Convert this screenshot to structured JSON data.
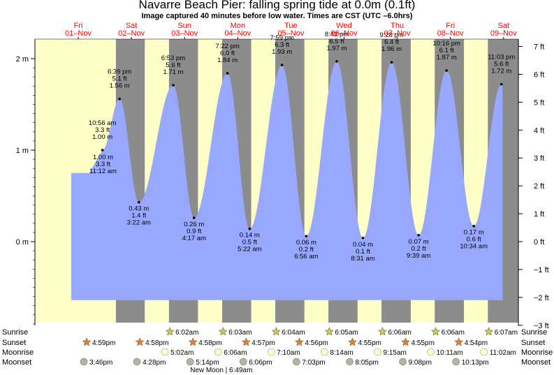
{
  "title": "Navarre Beach Pier: falling  spring tide at 0.0m (0.1ft)",
  "subtitle": "Image captured 40 minutes before low water. Times are CST (UTC –6.0hrs)",
  "chart_data": {
    "type": "area",
    "title": "Navarre Beach Pier: falling  spring tide at 0.0m (0.1ft)",
    "ylim_m": [
      -0.914,
      2.134
    ],
    "left_ticks": [
      {
        "value": 2,
        "label": "2 m"
      },
      {
        "value": 1,
        "label": "1 m"
      },
      {
        "value": 0,
        "label": "0 m"
      }
    ],
    "right_ticks": [
      {
        "value": 7,
        "label": "7 ft"
      },
      {
        "value": 6,
        "label": "6 ft"
      },
      {
        "value": 5,
        "label": "5 ft"
      },
      {
        "value": 4,
        "label": "4 ft"
      },
      {
        "value": 3,
        "label": "3 ft"
      },
      {
        "value": 2,
        "label": "2 ft"
      },
      {
        "value": 1,
        "label": "1 ft"
      },
      {
        "value": 0,
        "label": "0 ft"
      },
      {
        "value": -1,
        "label": "−1 ft"
      },
      {
        "value": -2,
        "label": "−2 ft"
      },
      {
        "value": -3,
        "label": "−3 ft"
      }
    ],
    "days": [
      {
        "dow": "Fri",
        "date": "01–Nov"
      },
      {
        "dow": "Sat",
        "date": "02–Nov"
      },
      {
        "dow": "Sun",
        "date": "03–Nov"
      },
      {
        "dow": "Mon",
        "date": "04–Nov"
      },
      {
        "dow": "Tue",
        "date": "05–Nov"
      },
      {
        "dow": "Wed",
        "date": "06–Nov"
      },
      {
        "dow": "Thu",
        "date": "07–Nov"
      },
      {
        "dow": "Fri",
        "date": "08–Nov"
      },
      {
        "dow": "Sat",
        "date": "09–Nov"
      }
    ],
    "high_tides": [
      {
        "day": 0,
        "hour": 10.93,
        "m": 1.0,
        "label": [
          "10:56 am",
          "3.3 ft",
          "1.00 m"
        ]
      },
      {
        "day": 0,
        "hour": 18.65,
        "m": 1.56,
        "label": [
          "6:39 pm",
          "5.1 ft",
          "1.56 m"
        ]
      },
      {
        "day": 1,
        "hour": 18.88,
        "m": 1.71,
        "label": [
          "6:53 pm",
          "5.6 ft",
          "1.71 m"
        ]
      },
      {
        "day": 2,
        "hour": 19.37,
        "m": 1.84,
        "label": [
          "7:22 pm",
          "6.0 ft",
          "1.84 m"
        ]
      },
      {
        "day": 3,
        "hour": 19.98,
        "m": 1.93,
        "label": [
          "7:59 pm",
          "6.3 ft",
          "1.93 m"
        ]
      },
      {
        "day": 4,
        "hour": 20.7,
        "m": 1.97,
        "label": [
          "8:42 pm",
          "6.5 ft",
          "1.97 m"
        ]
      },
      {
        "day": 5,
        "hour": 21.47,
        "m": 1.96,
        "label": [
          "9:28 pm",
          "6.4 ft",
          "1.96 m"
        ]
      },
      {
        "day": 6,
        "hour": 22.27,
        "m": 1.87,
        "label": [
          "10:16 pm",
          "6.1 ft",
          "1.87 m"
        ]
      },
      {
        "day": 7,
        "hour": 23.05,
        "m": 1.72,
        "label": [
          "11:03 pm",
          "5.6 ft",
          "1.72 m"
        ]
      }
    ],
    "low_tides": [
      {
        "day": 0,
        "hour": 11.2,
        "m": 1.0,
        "label": [
          "1.00 m",
          "3.3 ft",
          "11:12 am"
        ]
      },
      {
        "day": 1,
        "hour": 3.37,
        "m": 0.43,
        "label": [
          "0.43 m",
          "1.4 ft",
          "3:22 am"
        ]
      },
      {
        "day": 2,
        "hour": 4.28,
        "m": 0.26,
        "label": [
          "0.26 m",
          "0.9 ft",
          "4:17 am"
        ]
      },
      {
        "day": 3,
        "hour": 5.37,
        "m": 0.14,
        "label": [
          "0.14 m",
          "0.5 ft",
          "5:22 am"
        ]
      },
      {
        "day": 4,
        "hour": 6.93,
        "m": 0.06,
        "label": [
          "0.06 m",
          "0.2 ft",
          "6:56 am"
        ]
      },
      {
        "day": 5,
        "hour": 8.52,
        "m": 0.04,
        "label": [
          "0.04 m",
          "0.1 ft",
          "8:31 am"
        ]
      },
      {
        "day": 6,
        "hour": 9.65,
        "m": 0.07,
        "label": [
          "0.07 m",
          "0.2 ft",
          "9:39 am"
        ]
      },
      {
        "day": 7,
        "hour": 10.57,
        "m": 0.17,
        "label": [
          "0.17 m",
          "0.6 ft",
          "10:34 am"
        ]
      }
    ],
    "colors": {
      "day": "#ffffc8",
      "night": "#8c8c8c",
      "water": "#99a8ff",
      "day_label": "#ff0000",
      "sunrise_star": "#c8c864",
      "sunset_star": "#e08040",
      "moonrise": "#ffffc8",
      "moonset": "#b4b4a0"
    }
  },
  "rows": {
    "labels": {
      "sunrise": "Sunrise",
      "sunset": "Sunset",
      "moonrise": "Moonrise",
      "moonset": "Moonset"
    },
    "sunrise": [
      {
        "day": 1,
        "text": "6:02am"
      },
      {
        "day": 2,
        "text": "6:03am"
      },
      {
        "day": 3,
        "text": "6:04am"
      },
      {
        "day": 4,
        "text": "6:05am"
      },
      {
        "day": 5,
        "text": "6:06am"
      },
      {
        "day": 6,
        "text": "6:06am"
      },
      {
        "day": 7,
        "text": "6:07am"
      }
    ],
    "sunset": [
      {
        "day": 0,
        "text": "4:59pm"
      },
      {
        "day": 1,
        "text": "4:58pm"
      },
      {
        "day": 2,
        "text": "4:58pm"
      },
      {
        "day": 3,
        "text": "4:57pm"
      },
      {
        "day": 4,
        "text": "4:56pm"
      },
      {
        "day": 5,
        "text": "4:55pm"
      },
      {
        "day": 6,
        "text": "4:55pm"
      },
      {
        "day": 7,
        "text": "4:54pm"
      }
    ],
    "moonrise": [
      {
        "day": 1,
        "text": "5:02am"
      },
      {
        "day": 2,
        "text": "6:06am"
      },
      {
        "day": 3,
        "text": "7:10am"
      },
      {
        "day": 4,
        "text": "8:14am"
      },
      {
        "day": 5,
        "text": "9:15am"
      },
      {
        "day": 6,
        "text": "10:11am"
      },
      {
        "day": 7,
        "text": "11:02am"
      }
    ],
    "moonset": [
      {
        "day": 1,
        "text": "3:46pm"
      },
      {
        "day": 2,
        "text": "4:28pm"
      },
      {
        "day": 3,
        "text": "5:14pm"
      },
      {
        "day": 4,
        "text": "6:06pm"
      },
      {
        "day": 5,
        "text": "7:03pm"
      },
      {
        "day": 6,
        "text": "8:05pm"
      },
      {
        "day": 7,
        "text": "9:08pm"
      },
      {
        "day": 8,
        "text": "10:13pm"
      }
    ],
    "moon_phase": "New Moon | 6:49am"
  }
}
